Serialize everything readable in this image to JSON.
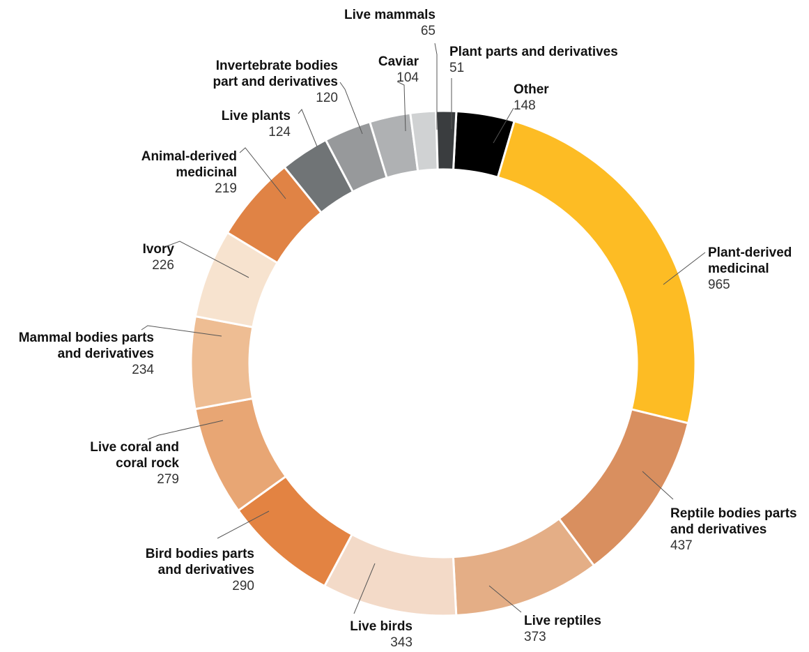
{
  "chart_data": {
    "type": "pie",
    "donut": true,
    "title": "",
    "legend": "none",
    "slices": [
      {
        "label_lines": [
          "Other"
        ],
        "value": 148,
        "color": "#000000"
      },
      {
        "label_lines": [
          "Plant-derived",
          "medicinal"
        ],
        "value": 965,
        "color": "#FDBC24"
      },
      {
        "label_lines": [
          "Reptile bodies parts",
          "and derivatives"
        ],
        "value": 437,
        "color": "#D98F5F"
      },
      {
        "label_lines": [
          "Live reptiles"
        ],
        "value": 373,
        "color": "#E4AE86"
      },
      {
        "label_lines": [
          "Live birds"
        ],
        "value": 343,
        "color": "#F3DAC8"
      },
      {
        "label_lines": [
          "Bird bodies parts",
          "and derivatives"
        ],
        "value": 290,
        "color": "#E38342"
      },
      {
        "label_lines": [
          "Live coral and",
          "coral rock"
        ],
        "value": 279,
        "color": "#E8A674"
      },
      {
        "label_lines": [
          "Mammal bodies parts",
          "and derivatives"
        ],
        "value": 234,
        "color": "#EEBD93"
      },
      {
        "label_lines": [
          "Ivory"
        ],
        "value": 226,
        "color": "#F7E3CF"
      },
      {
        "label_lines": [
          "Animal-derived",
          "medicinal"
        ],
        "value": 219,
        "color": "#E08345"
      },
      {
        "label_lines": [
          "Live plants"
        ],
        "value": 124,
        "color": "#707476"
      },
      {
        "label_lines": [
          "Invertebrate bodies",
          "part and derivatives"
        ],
        "value": 120,
        "color": "#97999B"
      },
      {
        "label_lines": [
          "Caviar"
        ],
        "value": 104,
        "color": "#AFB1B3"
      },
      {
        "label_lines": [
          "Live mammals"
        ],
        "value": 65,
        "color": "#D0D2D3"
      },
      {
        "label_lines": [
          "Plant parts and derivatives"
        ],
        "value": 51,
        "color": "#3A3D3F"
      }
    ]
  }
}
